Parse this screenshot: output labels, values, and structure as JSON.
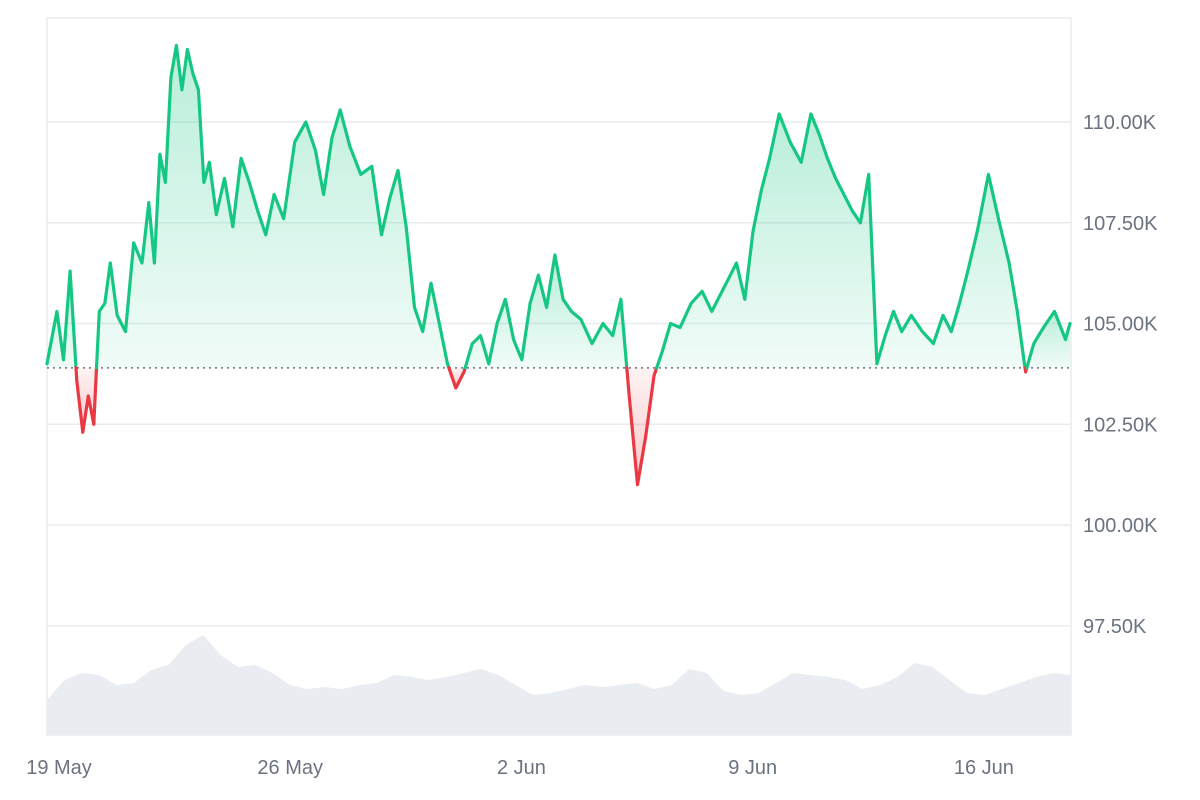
{
  "chart_data": {
    "type": "line",
    "baseline": 103900,
    "ylim": [
      95000,
      112500
    ],
    "y_ticks": [
      {
        "value": 97500,
        "label": "97.50K"
      },
      {
        "value": 100000,
        "label": "100.00K"
      },
      {
        "value": 102500,
        "label": "102.50K"
      },
      {
        "value": 105000,
        "label": "105.00K"
      },
      {
        "value": 107500,
        "label": "107.50K"
      },
      {
        "value": 110000,
        "label": "110.00K"
      }
    ],
    "x_ticks": [
      {
        "value": "2025-05-19",
        "label": "19 May"
      },
      {
        "value": "2025-05-26",
        "label": "26 May"
      },
      {
        "value": "2025-06-02",
        "label": "2 Jun"
      },
      {
        "value": "2025-06-09",
        "label": "9 Jun"
      },
      {
        "value": "2025-06-16",
        "label": "16 Jun"
      }
    ],
    "xlim": [
      "2025-05-19",
      "2025-06-19"
    ],
    "colors": {
      "above": "#16c784",
      "below": "#ea3943",
      "above_fill": "#16c784",
      "below_fill": "#ea3943",
      "grid": "#e9ecef",
      "baseline": "#6b7280",
      "volume": "#e9edf1"
    },
    "series": [
      {
        "values": [
          [
            "2025-05-19",
            104000
          ],
          [
            "2025-05-19",
            105300
          ],
          [
            "2025-05-19",
            104100
          ],
          [
            "2025-05-19",
            106300
          ],
          [
            "2025-05-19",
            103600
          ],
          [
            "2025-05-20",
            102300
          ],
          [
            "2025-05-20",
            103200
          ],
          [
            "2025-05-20",
            102500
          ],
          [
            "2025-05-20",
            105300
          ],
          [
            "2025-05-20",
            105500
          ],
          [
            "2025-05-20",
            106500
          ],
          [
            "2025-05-21",
            105200
          ],
          [
            "2025-05-21",
            104800
          ],
          [
            "2025-05-21",
            107000
          ],
          [
            "2025-05-21",
            106500
          ],
          [
            "2025-05-22",
            108000
          ],
          [
            "2025-05-22",
            106500
          ],
          [
            "2025-05-22",
            109200
          ],
          [
            "2025-05-22",
            108500
          ],
          [
            "2025-05-22",
            111100
          ],
          [
            "2025-05-22",
            111900
          ],
          [
            "2025-05-23",
            110800
          ],
          [
            "2025-05-23",
            111800
          ],
          [
            "2025-05-23",
            111200
          ],
          [
            "2025-05-23",
            110800
          ],
          [
            "2025-05-23",
            108500
          ],
          [
            "2025-05-23",
            109000
          ],
          [
            "2025-05-24",
            107700
          ],
          [
            "2025-05-24",
            108600
          ],
          [
            "2025-05-24",
            107400
          ],
          [
            "2025-05-24",
            109100
          ],
          [
            "2025-05-25",
            108500
          ],
          [
            "2025-05-25",
            107800
          ],
          [
            "2025-05-25",
            107200
          ],
          [
            "2025-05-25",
            108200
          ],
          [
            "2025-05-26",
            107600
          ],
          [
            "2025-05-26",
            109500
          ],
          [
            "2025-05-26",
            110000
          ],
          [
            "2025-05-27",
            109300
          ],
          [
            "2025-05-27",
            108200
          ],
          [
            "2025-05-27",
            109600
          ],
          [
            "2025-05-27",
            110300
          ],
          [
            "2025-05-28",
            109400
          ],
          [
            "2025-05-28",
            108700
          ],
          [
            "2025-05-28",
            108900
          ],
          [
            "2025-05-29",
            107200
          ],
          [
            "2025-05-29",
            108100
          ],
          [
            "2025-05-29",
            108800
          ],
          [
            "2025-05-29",
            107400
          ],
          [
            "2025-05-30",
            105400
          ],
          [
            "2025-05-30",
            104800
          ],
          [
            "2025-05-30",
            106000
          ],
          [
            "2025-05-30",
            105000
          ],
          [
            "2025-05-31",
            104000
          ],
          [
            "2025-05-31",
            103400
          ],
          [
            "2025-05-31",
            103800
          ],
          [
            "2025-05-31",
            104500
          ],
          [
            "2025-06-01",
            104700
          ],
          [
            "2025-06-01",
            104000
          ],
          [
            "2025-06-01",
            105000
          ],
          [
            "2025-06-01",
            105600
          ],
          [
            "2025-06-02",
            104600
          ],
          [
            "2025-06-02",
            104100
          ],
          [
            "2025-06-02",
            105500
          ],
          [
            "2025-06-02",
            106200
          ],
          [
            "2025-06-03",
            105400
          ],
          [
            "2025-06-03",
            106700
          ],
          [
            "2025-06-03",
            105600
          ],
          [
            "2025-06-03",
            105300
          ],
          [
            "2025-06-04",
            105100
          ],
          [
            "2025-06-04",
            104500
          ],
          [
            "2025-06-04",
            105000
          ],
          [
            "2025-06-05",
            104700
          ],
          [
            "2025-06-05",
            105600
          ],
          [
            "2025-06-05",
            103200
          ],
          [
            "2025-06-05",
            101000
          ],
          [
            "2025-06-06",
            102200
          ],
          [
            "2025-06-06",
            103700
          ],
          [
            "2025-06-06",
            104300
          ],
          [
            "2025-06-06",
            105000
          ],
          [
            "2025-06-07",
            104900
          ],
          [
            "2025-06-07",
            105500
          ],
          [
            "2025-06-07",
            105800
          ],
          [
            "2025-06-08",
            105300
          ],
          [
            "2025-06-08",
            105700
          ],
          [
            "2025-06-08",
            106100
          ],
          [
            "2025-06-08",
            106500
          ],
          [
            "2025-06-09",
            105600
          ],
          [
            "2025-06-09",
            107300
          ],
          [
            "2025-06-09",
            108300
          ],
          [
            "2025-06-09",
            109100
          ],
          [
            "2025-06-10",
            110200
          ],
          [
            "2025-06-10",
            109500
          ],
          [
            "2025-06-10",
            109000
          ],
          [
            "2025-06-11",
            110200
          ],
          [
            "2025-06-11",
            109700
          ],
          [
            "2025-06-11",
            109100
          ],
          [
            "2025-06-11",
            108600
          ],
          [
            "2025-06-12",
            108200
          ],
          [
            "2025-06-12",
            107800
          ],
          [
            "2025-06-12",
            107500
          ],
          [
            "2025-06-12",
            108700
          ],
          [
            "2025-06-13",
            104000
          ],
          [
            "2025-06-13",
            104700
          ],
          [
            "2025-06-13",
            105300
          ],
          [
            "2025-06-13",
            104800
          ],
          [
            "2025-06-14",
            105200
          ],
          [
            "2025-06-14",
            104800
          ],
          [
            "2025-06-14",
            104500
          ],
          [
            "2025-06-15",
            105200
          ],
          [
            "2025-06-15",
            104800
          ],
          [
            "2025-06-15",
            105500
          ],
          [
            "2025-06-15",
            106300
          ],
          [
            "2025-06-16",
            107300
          ],
          [
            "2025-06-16",
            108700
          ],
          [
            "2025-06-16",
            107500
          ],
          [
            "2025-06-17",
            106500
          ],
          [
            "2025-06-17",
            105300
          ],
          [
            "2025-06-17",
            103800
          ],
          [
            "2025-06-17",
            104500
          ],
          [
            "2025-06-18",
            104900
          ],
          [
            "2025-06-18",
            105300
          ],
          [
            "2025-06-18",
            104600
          ],
          [
            "2025-06-19",
            105000
          ]
        ]
      }
    ],
    "volume": [
      0.35,
      0.55,
      0.62,
      0.6,
      0.5,
      0.52,
      0.65,
      0.7,
      0.9,
      1.0,
      0.8,
      0.68,
      0.7,
      0.62,
      0.5,
      0.46,
      0.48,
      0.46,
      0.5,
      0.52,
      0.6,
      0.58,
      0.55,
      0.58,
      0.62,
      0.66,
      0.6,
      0.5,
      0.4,
      0.42,
      0.46,
      0.5,
      0.48,
      0.5,
      0.52,
      0.46,
      0.5,
      0.66,
      0.62,
      0.44,
      0.4,
      0.42,
      0.52,
      0.62,
      0.6,
      0.58,
      0.55,
      0.46,
      0.5,
      0.58,
      0.72,
      0.68,
      0.55,
      0.42,
      0.4,
      0.46,
      0.52,
      0.58,
      0.62,
      0.6
    ]
  }
}
